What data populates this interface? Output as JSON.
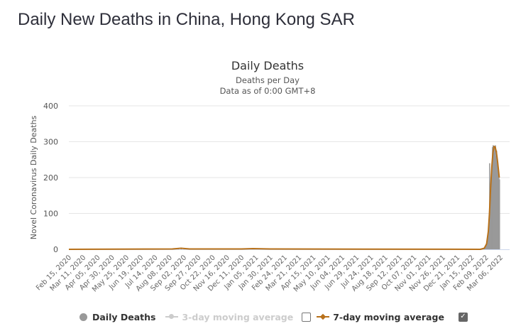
{
  "page": {
    "title": "Daily New Deaths in China, Hong Kong SAR"
  },
  "legend": {
    "items": [
      {
        "label": "Daily Deaths",
        "color": "#999999",
        "enabled": true
      },
      {
        "label": "3-day moving average",
        "color": "#cccccc",
        "enabled": false,
        "checkbox_checked": false
      },
      {
        "label": "7-day moving average",
        "color": "#b8711a",
        "enabled": true,
        "checkbox_checked": true
      }
    ],
    "checkbox_mark": "✓"
  },
  "chart_data": {
    "type": "bar",
    "title": "Daily Deaths",
    "subtitle": "Deaths per Day",
    "subtitle2": "Data as of 0:00 GMT+8",
    "ylabel": "Novel Coronavirus Daily Deaths",
    "xlabel": "",
    "ylim": [
      0,
      400
    ],
    "yticks": [
      "0",
      "100",
      "200",
      "300",
      "400"
    ],
    "grid": true,
    "legend_position": "bottom",
    "x_start": "2020-02-15",
    "x_end": "2022-03-22",
    "xticks": [
      "Feb 15, 2020",
      "Mar 11, 2020",
      "Apr 05, 2020",
      "Apr 30, 2020",
      "May 25, 2020",
      "Jun 19, 2020",
      "Jul 14, 2020",
      "Aug 08, 2020",
      "Sep 02, 2020",
      "Sep 27, 2020",
      "Oct 22, 2020",
      "Nov 16, 2020",
      "Dec 11, 2020",
      "Jan 05, 2021",
      "Jan 30, 2021",
      "Feb 24, 2021",
      "Mar 21, 2021",
      "Apr 15, 2021",
      "May 10, 2021",
      "Jun 04, 2021",
      "Jun 29, 2021",
      "Jul 24, 2021",
      "Aug 18, 2021",
      "Sep 12, 2021",
      "Oct 07, 2021",
      "Nov 01, 2021",
      "Nov 26, 2021",
      "Dec 21, 2021",
      "Jan 15, 2022",
      "Feb 09, 2022",
      "Mar 06, 2022"
    ],
    "series": [
      {
        "name": "Daily Deaths",
        "type": "bar",
        "points": [
          {
            "day": 5,
            "value": 1
          },
          {
            "day": 20,
            "value": 1
          },
          {
            "day": 185,
            "value": 2
          },
          {
            "day": 190,
            "value": 4
          },
          {
            "day": 195,
            "value": 5
          },
          {
            "day": 200,
            "value": 3
          },
          {
            "day": 210,
            "value": 2
          },
          {
            "day": 300,
            "value": 2
          },
          {
            "day": 310,
            "value": 3
          },
          {
            "day": 320,
            "value": 2
          },
          {
            "day": 340,
            "value": 2
          },
          {
            "day": 720,
            "value": 2
          },
          {
            "day": 722,
            "value": 5
          },
          {
            "day": 724,
            "value": 10
          },
          {
            "day": 726,
            "value": 20
          },
          {
            "day": 728,
            "value": 35
          },
          {
            "day": 730,
            "value": 70
          },
          {
            "day": 731,
            "value": 240
          },
          {
            "day": 732,
            "value": 110
          },
          {
            "day": 733,
            "value": 150
          },
          {
            "day": 734,
            "value": 190
          },
          {
            "day": 735,
            "value": 230
          },
          {
            "day": 736,
            "value": 285
          },
          {
            "day": 737,
            "value": 290
          },
          {
            "day": 738,
            "value": 280
          },
          {
            "day": 739,
            "value": 270
          },
          {
            "day": 740,
            "value": 285
          },
          {
            "day": 741,
            "value": 290
          },
          {
            "day": 742,
            "value": 260
          },
          {
            "day": 743,
            "value": 275
          },
          {
            "day": 744,
            "value": 250
          },
          {
            "day": 745,
            "value": 240
          },
          {
            "day": 746,
            "value": 220
          },
          {
            "day": 747,
            "value": 200
          },
          {
            "day": 748,
            "value": 195
          }
        ]
      },
      {
        "name": "7-day moving average",
        "type": "line",
        "points": [
          {
            "day": 0,
            "value": 0
          },
          {
            "day": 180,
            "value": 1
          },
          {
            "day": 195,
            "value": 3
          },
          {
            "day": 210,
            "value": 1
          },
          {
            "day": 300,
            "value": 1
          },
          {
            "day": 320,
            "value": 2
          },
          {
            "day": 350,
            "value": 1
          },
          {
            "day": 715,
            "value": 0
          },
          {
            "day": 722,
            "value": 3
          },
          {
            "day": 726,
            "value": 15
          },
          {
            "day": 729,
            "value": 50
          },
          {
            "day": 731,
            "value": 100
          },
          {
            "day": 733,
            "value": 170
          },
          {
            "day": 735,
            "value": 230
          },
          {
            "day": 737,
            "value": 270
          },
          {
            "day": 739,
            "value": 287
          },
          {
            "day": 741,
            "value": 285
          },
          {
            "day": 743,
            "value": 270
          },
          {
            "day": 745,
            "value": 245
          },
          {
            "day": 747,
            "value": 215
          },
          {
            "day": 748,
            "value": 200
          }
        ]
      }
    ]
  }
}
